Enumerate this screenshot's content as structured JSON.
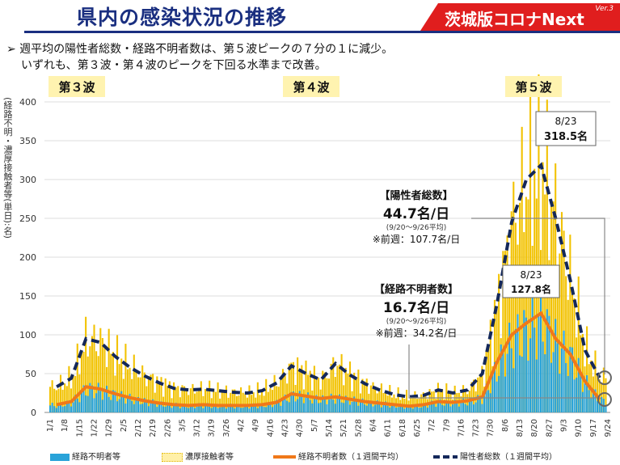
{
  "header": {
    "title": "県内の感染状況の推移",
    "brand": "茨城版コロナNext",
    "version": "Ver.3"
  },
  "bullets": [
    "➢ 週平均の陽性者総数・経路不明者数は、第５波ピークの７分の１に減少。",
    "いずれも、第３波・第４波のピークを下回る水準まで改善。"
  ],
  "colors": {
    "title": "#1a2f80",
    "brand_bg": "#e01e1e",
    "unknown_bar": "#29a3d9",
    "contact_bar": "#f2c200",
    "unknown_avg": "#f07819",
    "total_avg": "#14285a",
    "wave_label_bg": "#fff3b0"
  },
  "chart_data": {
    "type": "bar",
    "ylabel": "(経路不明・濃厚接触者等(単日):名)",
    "ylim": [
      0,
      400
    ],
    "yticks": [
      0,
      50,
      100,
      150,
      200,
      250,
      300,
      350,
      400
    ],
    "x_ticks": [
      "1/1",
      "1/8",
      "1/15",
      "1/22",
      "1/29",
      "2/5",
      "2/12",
      "2/19",
      "2/26",
      "3/5",
      "3/12",
      "3/19",
      "3/26",
      "4/2",
      "4/9",
      "4/16",
      "4/23",
      "4/30",
      "5/7",
      "5/14",
      "5/21",
      "5/28",
      "6/4",
      "6/11",
      "6/18",
      "6/25",
      "7/2",
      "7/9",
      "7/16",
      "7/23",
      "7/30",
      "8/6",
      "8/13",
      "8/20",
      "8/27",
      "9/3",
      "9/10",
      "9/17",
      "9/24"
    ],
    "weekly_total": [
      33,
      44,
      95,
      90,
      72,
      58,
      47,
      38,
      31,
      29,
      30,
      28,
      26,
      25,
      28,
      38,
      60,
      50,
      42,
      63,
      48,
      37,
      29,
      23,
      20,
      22,
      29,
      25,
      29,
      50,
      140,
      245,
      300,
      318.5,
      250,
      170,
      80,
      44.7
    ],
    "weekly_unknown": [
      10,
      14,
      33,
      30,
      24,
      19,
      15,
      12,
      10,
      9,
      10,
      9,
      9,
      9,
      10,
      13,
      24,
      21,
      18,
      20,
      17,
      14,
      12,
      10,
      8,
      10,
      14,
      13,
      15,
      20,
      65,
      100,
      115,
      127.8,
      95,
      75,
      40,
      16.7
    ],
    "series": [
      {
        "name": "経路不明者等"
      },
      {
        "name": "濃厚接触者等"
      },
      {
        "name": "経路不明者数（１週間平均）"
      },
      {
        "name": "陽性者総数（１週間平均）"
      }
    ],
    "waves": [
      "第３波",
      "第４波",
      "第５波"
    ],
    "annotations": {
      "peak_total_date": "8/23",
      "peak_total_value": "318.5名",
      "peak_unknown_date": "8/23",
      "peak_unknown_value": "127.8名",
      "total_box_title": "【陽性者総数】",
      "total_box_value": "44.7名/日",
      "total_box_period": "(9/20～9/26平均)",
      "total_box_prev": "※前週：107.7名/日",
      "unknown_box_title": "【経路不明者数】",
      "unknown_box_value": "16.7名/日",
      "unknown_box_period": "(9/20～9/26平均)",
      "unknown_box_prev": "※前週：34.2名/日"
    }
  }
}
